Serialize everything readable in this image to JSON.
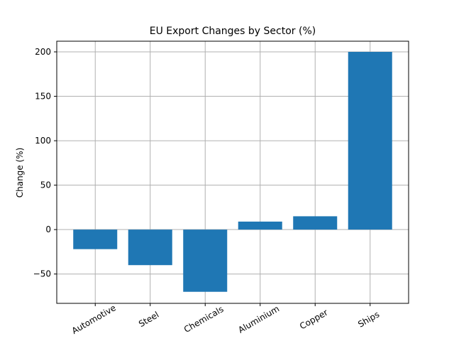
{
  "chart_data": {
    "type": "bar",
    "title": "EU Export Changes by Sector (%)",
    "xlabel": "",
    "ylabel": "Change (%)",
    "categories": [
      "Automotive",
      "Steel",
      "Chemicals",
      "Aluminium",
      "Copper",
      "Ships"
    ],
    "values": [
      -22,
      -40,
      -70,
      9,
      15,
      200
    ],
    "ylim": [
      -83,
      212
    ],
    "yticks": [
      -50,
      0,
      50,
      100,
      150,
      200
    ],
    "ytick_labels": [
      "−50",
      "0",
      "50",
      "100",
      "150",
      "200"
    ],
    "grid": true,
    "bar_color": "#1f77b4",
    "grid_color": "#b0b0b0"
  }
}
